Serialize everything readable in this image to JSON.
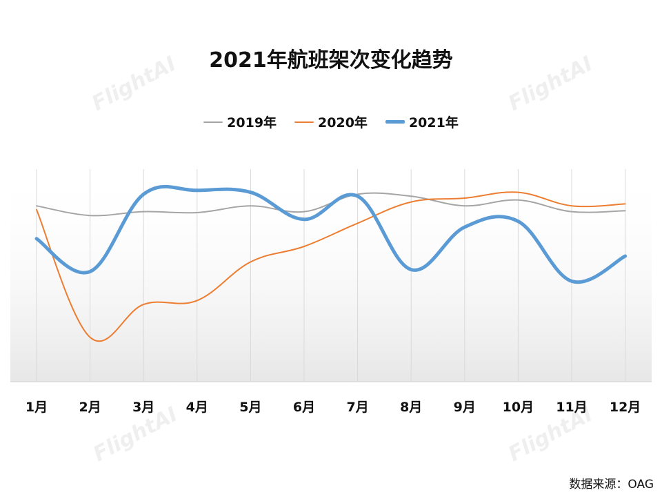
{
  "watermark": "FlightAI",
  "source": "数据来源：OAG",
  "chart_data": {
    "type": "line",
    "title": "2021年航班架次变化趋势",
    "categories": [
      "1月",
      "2月",
      "3月",
      "4月",
      "5月",
      "6月",
      "7月",
      "8月",
      "9月",
      "10月",
      "11月",
      "12月"
    ],
    "ylim": [
      0,
      110
    ],
    "grid": "vertical",
    "legend": "top-center",
    "series": [
      {
        "name": "2019年",
        "color": "#a5a5a5",
        "width": 2,
        "values": [
          91,
          86,
          88,
          87.5,
          91,
          88,
          97,
          96,
          91,
          94,
          88,
          88.5
        ]
      },
      {
        "name": "2020年",
        "color": "#ed7d31",
        "width": 2,
        "values": [
          89,
          23,
          40,
          42,
          62,
          70,
          82,
          93,
          95,
          98,
          91,
          92
        ]
      },
      {
        "name": "2021年",
        "color": "#5b9bd5",
        "width": 5,
        "values": [
          74,
          57,
          97,
          99,
          98,
          84,
          96,
          58,
          80,
          83,
          52,
          65
        ]
      }
    ]
  }
}
